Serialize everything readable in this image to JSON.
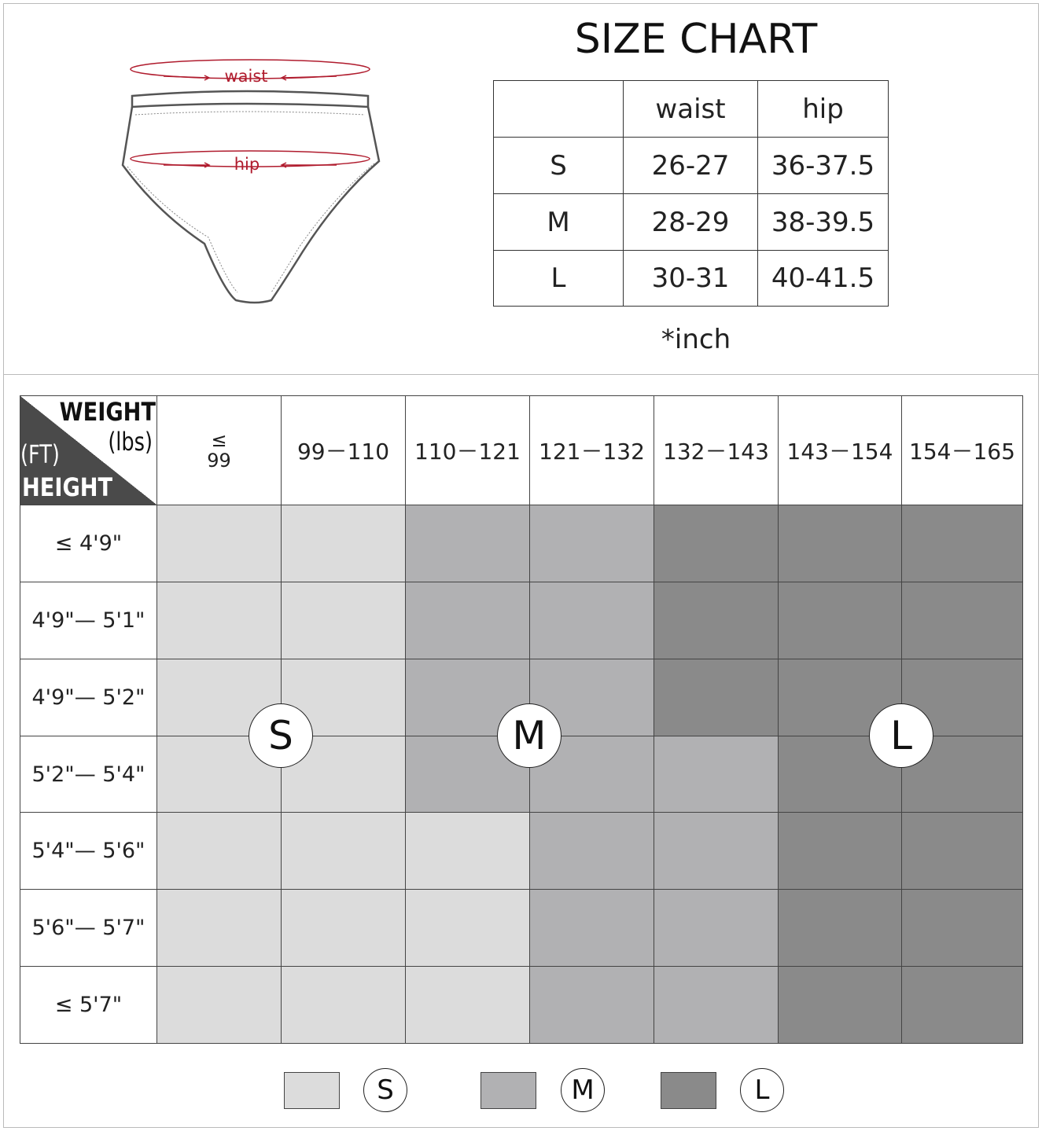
{
  "diagram": {
    "waist_label": "waist",
    "hip_label": "hip"
  },
  "size_chart": {
    "title": "SIZE CHART",
    "columns": [
      "waist",
      "hip"
    ],
    "rows": [
      {
        "size": "S",
        "waist": "26-27",
        "hip": "36-37.5"
      },
      {
        "size": "M",
        "waist": "28-29",
        "hip": "38-39.5"
      },
      {
        "size": "L",
        "waist": "30-31",
        "hip": "40-41.5"
      }
    ],
    "note": "*inch"
  },
  "fit_grid": {
    "corner": {
      "weight": "WEIGHT",
      "weight_unit": "(lbs)",
      "height_unit": "(FT)",
      "height": "HEIGHT"
    },
    "weight_ranges": [
      "≤\n99",
      "99－110",
      "110－121",
      "121－132",
      "132－143",
      "143－154",
      "154－165"
    ],
    "height_ranges": [
      "≤  4'9\"",
      "4'9\"— 5'1\"",
      "4'9\"— 5'2\"",
      "5'2\"— 5'4\"",
      "5'4\"— 5'6\"",
      "5'6\"— 5'7\"",
      "≤  5'7\""
    ],
    "cells": [
      [
        "S",
        "S",
        "M",
        "M",
        "L",
        "L",
        "L"
      ],
      [
        "S",
        "S",
        "M",
        "M",
        "L",
        "L",
        "L"
      ],
      [
        "S",
        "S",
        "M",
        "M",
        "L",
        "L",
        "L"
      ],
      [
        "S",
        "S",
        "M",
        "M",
        "M",
        "L",
        "L"
      ],
      [
        "S",
        "S",
        "S",
        "M",
        "M",
        "L",
        "L"
      ],
      [
        "S",
        "S",
        "S",
        "M",
        "M",
        "L",
        "L"
      ],
      [
        "S",
        "S",
        "S",
        "M",
        "M",
        "L",
        "L"
      ]
    ],
    "zone_labels": [
      "S",
      "M",
      "L"
    ],
    "legend": [
      {
        "label": "S",
        "color": "#dcdcdc"
      },
      {
        "label": "M",
        "color": "#b1b1b3"
      },
      {
        "label": "L",
        "color": "#8a8a8a"
      }
    ]
  }
}
